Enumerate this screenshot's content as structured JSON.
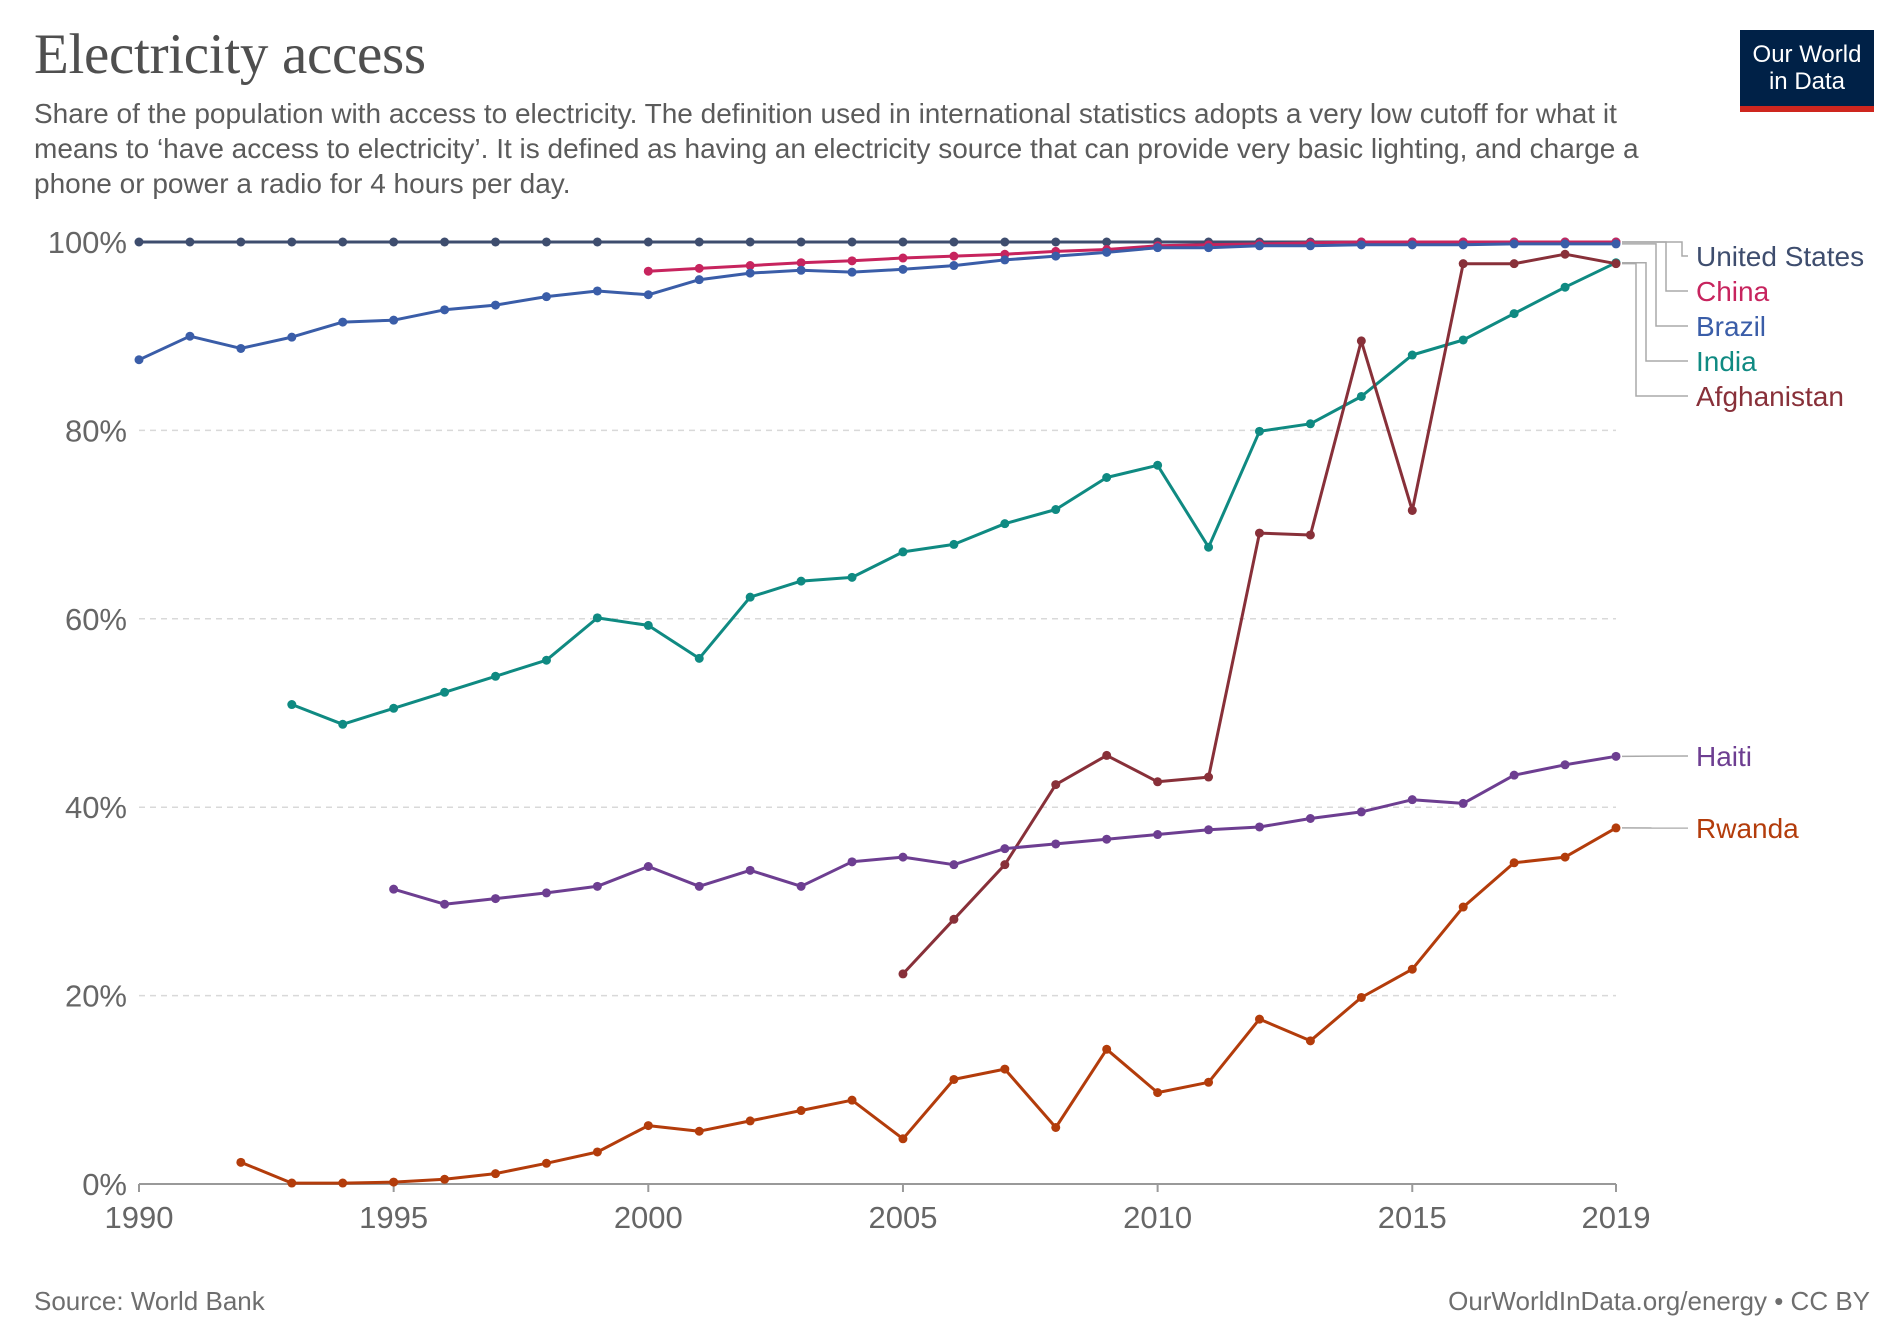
{
  "header": {
    "title": "Electricity access",
    "subtitle": "Share of the population with access to electricity. The definition used in international statistics adopts a very low cutoff for what it means to ‘have access to electricity’. It is defined as having an electricity source that can provide very basic lighting, and charge a phone or power a radio for 4 hours per day."
  },
  "logo": {
    "line1": "Our World",
    "line2": "in Data"
  },
  "footer": {
    "source": "Source: World Bank",
    "credit": "OurWorldInData.org/energy • CC BY"
  },
  "chart_data": {
    "type": "line",
    "title": "Electricity access",
    "xlim": [
      1990,
      2019
    ],
    "ylim": [
      0,
      100
    ],
    "x_ticks": [
      1990,
      1995,
      2000,
      2005,
      2010,
      2015,
      2019
    ],
    "x_tick_labels": [
      "1990",
      "1995",
      "2000",
      "2005",
      "2010",
      "2015",
      "2019"
    ],
    "y_ticks": [
      0,
      20,
      40,
      60,
      80,
      100
    ],
    "y_tick_labels": [
      "0%",
      "20%",
      "40%",
      "60%",
      "80%",
      "100%"
    ],
    "grid": "horizontal dashed",
    "legend": "right, labels at line ends",
    "series": [
      {
        "name": "United States",
        "color": "#3e4d6e",
        "x": [
          1990,
          1991,
          1992,
          1993,
          1994,
          1995,
          1996,
          1997,
          1998,
          1999,
          2000,
          2001,
          2002,
          2003,
          2004,
          2005,
          2006,
          2007,
          2008,
          2009,
          2010,
          2011,
          2012,
          2013,
          2014,
          2015,
          2016,
          2017,
          2018,
          2019
        ],
        "y": [
          100,
          100,
          100,
          100,
          100,
          100,
          100,
          100,
          100,
          100,
          100,
          100,
          100,
          100,
          100,
          100,
          100,
          100,
          100,
          100,
          100,
          100,
          100,
          100,
          100,
          100,
          100,
          100,
          100,
          100
        ]
      },
      {
        "name": "China",
        "color": "#c7245e",
        "x": [
          2000,
          2001,
          2002,
          2003,
          2004,
          2005,
          2006,
          2007,
          2008,
          2009,
          2010,
          2011,
          2012,
          2013,
          2014,
          2015,
          2016,
          2017,
          2018,
          2019
        ],
        "y": [
          96.9,
          97.2,
          97.5,
          97.8,
          98.0,
          98.3,
          98.5,
          98.7,
          99.0,
          99.2,
          99.6,
          99.7,
          99.8,
          99.9,
          100,
          100,
          100,
          100,
          100,
          100
        ]
      },
      {
        "name": "Brazil",
        "color": "#3a5da8",
        "x": [
          1990,
          1991,
          1992,
          1993,
          1994,
          1995,
          1996,
          1997,
          1998,
          1999,
          2000,
          2001,
          2002,
          2003,
          2004,
          2005,
          2006,
          2007,
          2008,
          2009,
          2010,
          2011,
          2012,
          2013,
          2014,
          2015,
          2016,
          2017,
          2018,
          2019
        ],
        "y": [
          87.5,
          90.0,
          88.7,
          89.9,
          91.5,
          91.7,
          92.8,
          93.3,
          94.2,
          94.8,
          94.4,
          96.0,
          96.7,
          97.0,
          96.8,
          97.1,
          97.5,
          98.1,
          98.5,
          98.9,
          99.4,
          99.4,
          99.6,
          99.6,
          99.7,
          99.7,
          99.7,
          99.8,
          99.8,
          99.8
        ]
      },
      {
        "name": "India",
        "color": "#0f8a82",
        "x": [
          1993,
          1994,
          1995,
          1996,
          1997,
          1998,
          1999,
          2000,
          2001,
          2002,
          2003,
          2004,
          2005,
          2006,
          2007,
          2008,
          2009,
          2010,
          2011,
          2012,
          2013,
          2014,
          2015,
          2016,
          2017,
          2018,
          2019
        ],
        "y": [
          50.9,
          48.8,
          50.5,
          52.2,
          53.9,
          55.6,
          60.1,
          59.3,
          55.8,
          62.3,
          64.0,
          64.4,
          67.1,
          67.9,
          70.1,
          71.6,
          75.0,
          76.3,
          67.6,
          79.9,
          80.7,
          83.6,
          88.0,
          89.6,
          92.4,
          95.2,
          97.8
        ]
      },
      {
        "name": "Afghanistan",
        "color": "#883039",
        "x": [
          2005,
          2006,
          2007,
          2008,
          2009,
          2010,
          2011,
          2012,
          2013,
          2014,
          2015,
          2016,
          2017,
          2018,
          2019
        ],
        "y": [
          22.3,
          28.1,
          33.9,
          42.4,
          45.5,
          42.7,
          43.2,
          69.1,
          68.9,
          89.5,
          71.5,
          97.7,
          97.7,
          98.7,
          97.7
        ]
      },
      {
        "name": "Haiti",
        "color": "#6d3e91",
        "x": [
          1995,
          1996,
          1997,
          1998,
          1999,
          2000,
          2001,
          2002,
          2003,
          2004,
          2005,
          2006,
          2007,
          2008,
          2009,
          2010,
          2011,
          2012,
          2013,
          2014,
          2015,
          2016,
          2017,
          2018,
          2019
        ],
        "y": [
          31.3,
          29.7,
          30.3,
          30.9,
          31.6,
          33.7,
          31.6,
          33.3,
          31.6,
          34.2,
          34.7,
          33.9,
          35.6,
          36.1,
          36.6,
          37.1,
          37.6,
          37.9,
          38.8,
          39.5,
          40.8,
          40.4,
          43.4,
          44.5,
          45.4
        ]
      },
      {
        "name": "Rwanda",
        "color": "#b33c0b",
        "x": [
          1992,
          1993,
          1994,
          1995,
          1996,
          1997,
          1998,
          1999,
          2000,
          2001,
          2002,
          2003,
          2004,
          2005,
          2006,
          2007,
          2008,
          2009,
          2010,
          2011,
          2012,
          2013,
          2014,
          2015,
          2016,
          2017,
          2018,
          2019
        ],
        "y": [
          2.3,
          0.1,
          0.1,
          0.2,
          0.5,
          1.1,
          2.2,
          3.4,
          6.2,
          5.6,
          6.7,
          7.8,
          8.9,
          4.8,
          11.1,
          12.2,
          6.0,
          14.3,
          9.7,
          10.8,
          17.5,
          15.2,
          19.8,
          22.8,
          29.4,
          34.1,
          34.7,
          37.8
        ]
      }
    ]
  }
}
